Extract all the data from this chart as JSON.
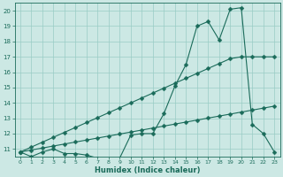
{
  "xlabel": "Humidex (Indice chaleur)",
  "bg_color": "#cce8e4",
  "line_color": "#1a6b5a",
  "grid_color": "#99ccc5",
  "xlim": [
    -0.5,
    23.5
  ],
  "ylim": [
    10.5,
    20.5
  ],
  "xticks": [
    0,
    1,
    2,
    3,
    4,
    5,
    6,
    7,
    8,
    9,
    10,
    11,
    12,
    13,
    14,
    15,
    16,
    17,
    18,
    19,
    20,
    21,
    22,
    23
  ],
  "yticks": [
    11,
    12,
    13,
    14,
    15,
    16,
    17,
    18,
    19,
    20
  ],
  "series1_x": [
    0,
    1,
    2,
    3,
    4,
    5,
    6,
    7,
    8,
    9,
    10,
    11,
    12,
    13,
    14,
    15,
    16,
    17,
    18,
    19,
    20,
    21,
    22,
    23
  ],
  "series1_y": [
    10.8,
    10.5,
    10.8,
    11.0,
    10.7,
    10.7,
    10.6,
    10.4,
    10.3,
    10.4,
    11.9,
    12.0,
    12.0,
    13.3,
    15.1,
    16.5,
    19.0,
    19.3,
    18.1,
    20.1,
    20.2,
    12.6,
    12.0,
    10.8
  ],
  "series2_x": [
    0,
    1,
    2,
    3,
    4,
    5,
    6,
    7,
    8,
    9,
    10,
    11,
    12,
    13,
    14,
    15,
    16,
    17,
    18,
    19,
    20,
    21,
    22,
    23
  ],
  "series2_y": [
    10.8,
    11.12,
    11.44,
    11.76,
    12.08,
    12.4,
    12.72,
    13.04,
    13.36,
    13.68,
    14.0,
    14.32,
    14.64,
    14.96,
    15.28,
    15.6,
    15.92,
    16.24,
    16.56,
    16.88,
    17.0,
    17.0,
    17.0,
    17.0
  ],
  "series3_x": [
    0,
    1,
    2,
    3,
    4,
    5,
    6,
    7,
    8,
    9,
    10,
    11,
    12,
    13,
    14,
    15,
    16,
    17,
    18,
    19,
    20,
    21,
    22,
    23
  ],
  "series3_y": [
    10.8,
    10.93,
    11.06,
    11.19,
    11.32,
    11.45,
    11.58,
    11.71,
    11.84,
    11.97,
    12.1,
    12.23,
    12.36,
    12.49,
    12.62,
    12.75,
    12.88,
    13.01,
    13.14,
    13.27,
    13.4,
    13.53,
    13.66,
    13.79
  ],
  "marker": "D",
  "markersize": 2.5,
  "linewidth": 0.8
}
